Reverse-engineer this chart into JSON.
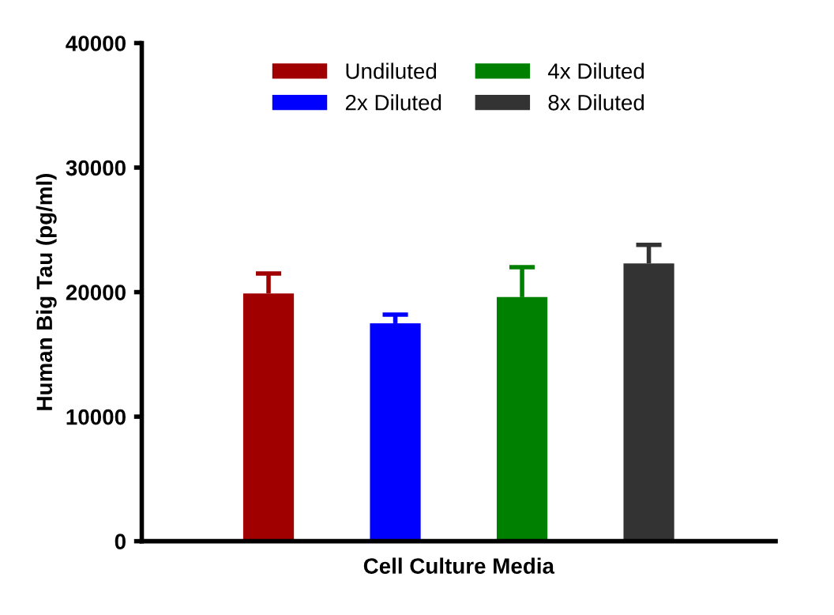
{
  "chart_data": {
    "type": "bar",
    "xlabel": "Cell Culture Media",
    "ylabel": "Human Big Tau (pg/ml)",
    "categories": [
      null
    ],
    "series": [
      {
        "name": "Undiluted",
        "color": "#a00000",
        "values": [
          19900
        ],
        "errors": [
          [
            19900,
            21500
          ]
        ]
      },
      {
        "name": "2x Diluted",
        "color": "#0000ff",
        "values": [
          17500
        ],
        "errors": [
          [
            17500,
            18200
          ]
        ]
      },
      {
        "name": "4x Diluted",
        "color": "#008000",
        "values": [
          19600
        ],
        "errors": [
          [
            19600,
            22000
          ]
        ]
      },
      {
        "name": "8x Diluted",
        "color": "#333333",
        "values": [
          22300
        ],
        "errors": [
          [
            22300,
            23800
          ]
        ]
      }
    ],
    "ylim": [
      0,
      40000
    ],
    "yticks": [
      0,
      10000,
      20000,
      30000,
      40000
    ],
    "grid": false,
    "legend": "top"
  }
}
